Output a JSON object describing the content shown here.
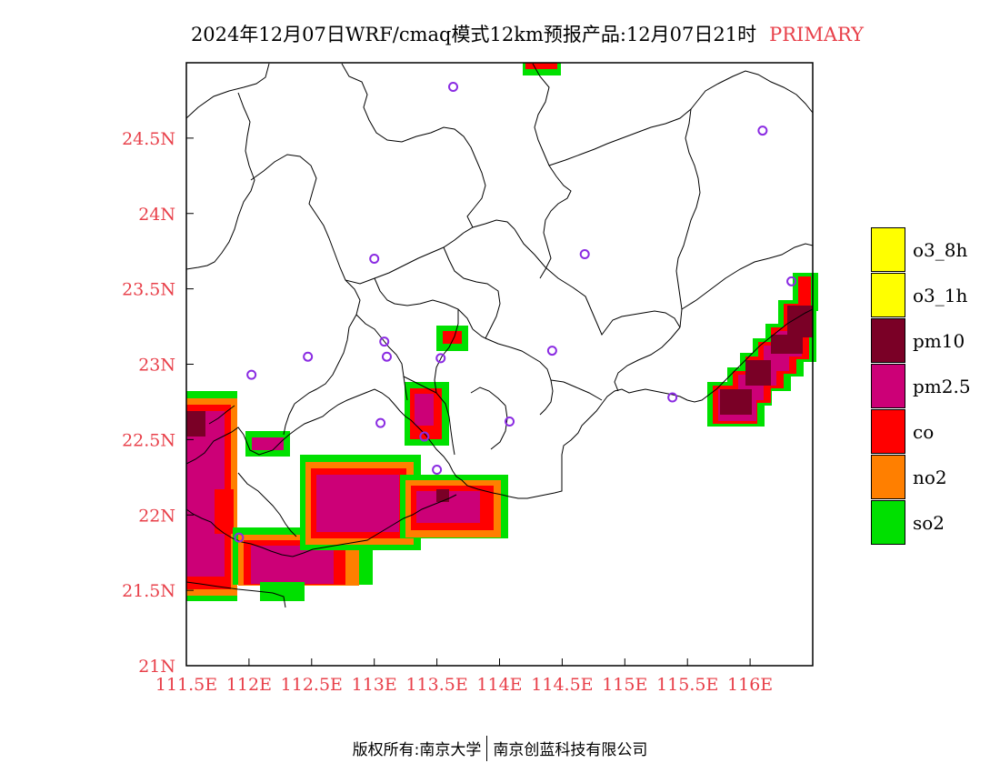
{
  "title": {
    "main": "2024年12月07日WRF/cmaq模式12km预报产品:12月07日21时",
    "tag": "PRIMARY"
  },
  "map": {
    "lon_range": [
      111.5,
      116.5
    ],
    "lat_range": [
      21.0,
      25.0
    ],
    "x_ticks": [
      {
        "value": 111.5,
        "label": "111.5E"
      },
      {
        "value": 112.0,
        "label": "112E"
      },
      {
        "value": 112.5,
        "label": "112.5E"
      },
      {
        "value": 113.0,
        "label": "113E"
      },
      {
        "value": 113.5,
        "label": "113.5E"
      },
      {
        "value": 114.0,
        "label": "114E"
      },
      {
        "value": 114.5,
        "label": "114.5E"
      },
      {
        "value": 115.0,
        "label": "115E"
      },
      {
        "value": 115.5,
        "label": "115.5E"
      },
      {
        "value": 116.0,
        "label": "116E"
      }
    ],
    "y_ticks": [
      {
        "value": 21.0,
        "label": "21N"
      },
      {
        "value": 21.5,
        "label": "21.5N"
      },
      {
        "value": 22.0,
        "label": "22N"
      },
      {
        "value": 22.5,
        "label": "22.5N"
      },
      {
        "value": 23.0,
        "label": "23N"
      },
      {
        "value": 23.5,
        "label": "23.5N"
      },
      {
        "value": 24.0,
        "label": "24N"
      },
      {
        "value": 24.5,
        "label": "24.5N"
      }
    ],
    "tick_label_color": "#e8404a",
    "stations": [
      {
        "lon": 113.63,
        "lat": 24.84
      },
      {
        "lon": 116.1,
        "lat": 24.55
      },
      {
        "lon": 113.0,
        "lat": 23.7
      },
      {
        "lon": 114.68,
        "lat": 23.73
      },
      {
        "lon": 116.33,
        "lat": 23.55
      },
      {
        "lon": 112.47,
        "lat": 23.05
      },
      {
        "lon": 113.08,
        "lat": 23.15
      },
      {
        "lon": 113.1,
        "lat": 23.05
      },
      {
        "lon": 113.53,
        "lat": 23.04
      },
      {
        "lon": 114.42,
        "lat": 23.09
      },
      {
        "lon": 112.02,
        "lat": 22.93
      },
      {
        "lon": 115.38,
        "lat": 22.78
      },
      {
        "lon": 113.05,
        "lat": 22.61
      },
      {
        "lon": 114.08,
        "lat": 22.62
      },
      {
        "lon": 113.4,
        "lat": 22.52
      },
      {
        "lon": 113.5,
        "lat": 22.3
      },
      {
        "lon": 111.92,
        "lat": 21.85
      }
    ],
    "station_color": "#8a2be2"
  },
  "legend": [
    {
      "label": "o3_8h",
      "color": "#ffff00"
    },
    {
      "label": "o3_1h",
      "color": "#ffff00"
    },
    {
      "label": "pm10",
      "color": "#7a0026"
    },
    {
      "label": "pm2.5",
      "color": "#cc0077"
    },
    {
      "label": "co",
      "color": "#ff0000"
    },
    {
      "label": "no2",
      "color": "#ff7f00"
    },
    {
      "label": "so2",
      "color": "#00e000"
    }
  ],
  "footer": {
    "left": "版权所有:南京大学",
    "right": "南京创蓝科技有限公司"
  }
}
